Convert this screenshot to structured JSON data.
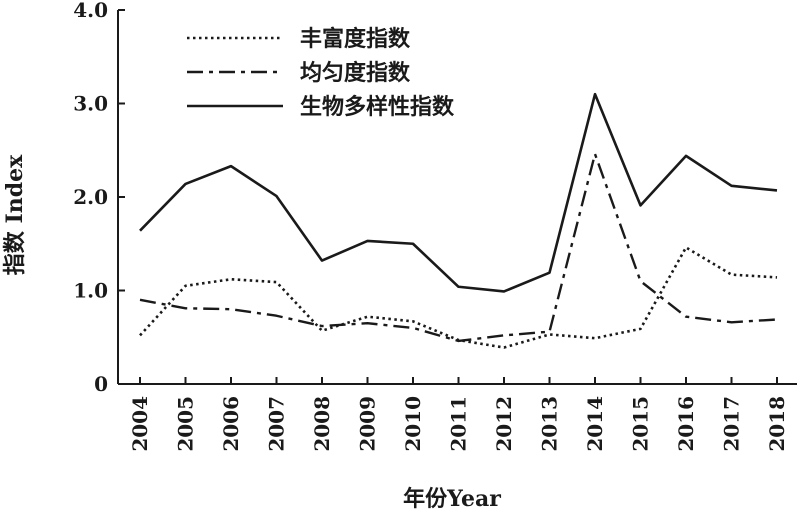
{
  "chart_data": {
    "type": "line",
    "title": "",
    "xlabel": "年份Year",
    "ylabel": "指数 Index",
    "ylim": [
      0,
      4.0
    ],
    "y_ticks": [
      "0",
      "1.0",
      "2.0",
      "3.0",
      "4.0"
    ],
    "categories": [
      "2004",
      "2005",
      "2006",
      "2007",
      "2008",
      "2009",
      "2010",
      "2011",
      "2012",
      "2013",
      "2014",
      "2015",
      "2016",
      "2017",
      "2018"
    ],
    "grid": false,
    "legend_position": "top-left",
    "series": [
      {
        "name": "丰富度指数",
        "line_style": "dotted",
        "values": [
          0.52,
          1.05,
          1.12,
          1.09,
          0.57,
          0.72,
          0.67,
          0.47,
          0.39,
          0.53,
          0.49,
          0.59,
          1.46,
          1.17,
          1.14
        ]
      },
      {
        "name": "均匀度指数",
        "line_style": "dash-dot",
        "values": [
          0.9,
          0.81,
          0.8,
          0.73,
          0.62,
          0.65,
          0.6,
          0.46,
          0.52,
          0.56,
          2.46,
          1.1,
          0.72,
          0.66,
          0.69
        ]
      },
      {
        "name": "生物多样性指数",
        "line_style": "solid",
        "values": [
          1.64,
          2.14,
          2.33,
          2.01,
          1.32,
          1.53,
          1.5,
          1.04,
          0.99,
          1.19,
          3.1,
          1.91,
          2.44,
          2.12,
          2.07
        ]
      }
    ]
  }
}
